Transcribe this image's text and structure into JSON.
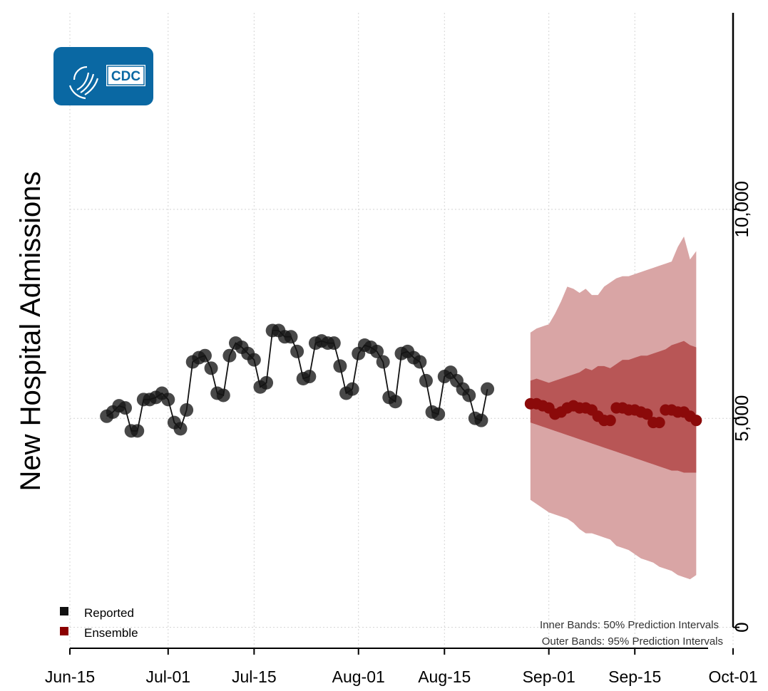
{
  "logo": {
    "text": "CDC",
    "icon": "hhs-eagle-icon",
    "color": "#0a68a3"
  },
  "chart_data": {
    "type": "line",
    "title": "",
    "ylabel": "New Hospital Admissions",
    "xlabel": "",
    "x_axis": {
      "type": "date",
      "range": [
        "2021-06-15",
        "2021-10-01"
      ],
      "ticks": [
        {
          "date": "2021-06-15",
          "label": "Jun-15"
        },
        {
          "date": "2021-07-01",
          "label": "Jul-01"
        },
        {
          "date": "2021-07-15",
          "label": "Jul-15"
        },
        {
          "date": "2021-08-01",
          "label": "Aug-01"
        },
        {
          "date": "2021-08-15",
          "label": "Aug-15"
        },
        {
          "date": "2021-09-01",
          "label": "Sep-01"
        },
        {
          "date": "2021-09-15",
          "label": "Sep-15"
        },
        {
          "date": "2021-10-01",
          "label": "Oct-01"
        }
      ]
    },
    "y_axis": {
      "position": "right",
      "range": [
        -500,
        14700
      ],
      "ticks": [
        {
          "value": 0,
          "label": "0"
        },
        {
          "value": 5000,
          "label": "5,000"
        },
        {
          "value": 10000,
          "label": "10,000"
        }
      ]
    },
    "grid": true,
    "legend": {
      "position": "bottom-left",
      "entries": [
        {
          "label": "Reported",
          "color": "#111111"
        },
        {
          "label": "Ensemble",
          "color": "#8b0000"
        }
      ]
    },
    "annotations": [
      "Inner Bands: 50% Prediction Intervals",
      "Outer Bands: 95% Prediction Intervals"
    ],
    "series": [
      {
        "name": "Reported",
        "color": "#111111",
        "dates": [
          "2021-06-21",
          "2021-06-22",
          "2021-06-23",
          "2021-06-24",
          "2021-06-25",
          "2021-06-26",
          "2021-06-27",
          "2021-06-28",
          "2021-06-29",
          "2021-06-30",
          "2021-07-01",
          "2021-07-02",
          "2021-07-03",
          "2021-07-04",
          "2021-07-05",
          "2021-07-06",
          "2021-07-07",
          "2021-07-08",
          "2021-07-09",
          "2021-07-10",
          "2021-07-11",
          "2021-07-12",
          "2021-07-13",
          "2021-07-14",
          "2021-07-15",
          "2021-07-16",
          "2021-07-17",
          "2021-07-18",
          "2021-07-19",
          "2021-07-20",
          "2021-07-21",
          "2021-07-22",
          "2021-07-23",
          "2021-07-24",
          "2021-07-25",
          "2021-07-26",
          "2021-07-27",
          "2021-07-28",
          "2021-07-29",
          "2021-07-30",
          "2021-07-31",
          "2021-08-01",
          "2021-08-02",
          "2021-08-03",
          "2021-08-04",
          "2021-08-05",
          "2021-08-06",
          "2021-08-07",
          "2021-08-08",
          "2021-08-09",
          "2021-08-10",
          "2021-08-11",
          "2021-08-12",
          "2021-08-13",
          "2021-08-14",
          "2021-08-15",
          "2021-08-16",
          "2021-08-17",
          "2021-08-18",
          "2021-08-19",
          "2021-08-20",
          "2021-08-21",
          "2021-08-22"
        ],
        "values": [
          5050,
          5150,
          5300,
          5250,
          4700,
          4700,
          5450,
          5450,
          5500,
          5600,
          5450,
          4900,
          4750,
          5200,
          6350,
          6450,
          6500,
          6200,
          5600,
          5550,
          6500,
          6800,
          6700,
          6550,
          6400,
          5750,
          5850,
          7100,
          7100,
          6950,
          6950,
          6600,
          5950,
          6000,
          6800,
          6850,
          6800,
          6800,
          6250,
          5600,
          5700,
          6550,
          6750,
          6700,
          6600,
          6350,
          5500,
          5400,
          6550,
          6600,
          6450,
          6350,
          5900,
          5150,
          5100,
          6000,
          6100,
          5900,
          5700,
          5550,
          5000,
          4950,
          5700
        ]
      },
      {
        "name": "Ensemble",
        "color": "#8b0000",
        "dates": [
          "2021-08-29",
          "2021-08-30",
          "2021-08-31",
          "2021-09-01",
          "2021-09-02",
          "2021-09-03",
          "2021-09-04",
          "2021-09-05",
          "2021-09-06",
          "2021-09-07",
          "2021-09-08",
          "2021-09-09",
          "2021-09-10",
          "2021-09-11",
          "2021-09-12",
          "2021-09-13",
          "2021-09-14",
          "2021-09-15",
          "2021-09-16",
          "2021-09-17",
          "2021-09-18",
          "2021-09-19",
          "2021-09-20",
          "2021-09-21",
          "2021-09-22",
          "2021-09-23",
          "2021-09-24",
          "2021-09-25"
        ],
        "values": [
          5350,
          5350,
          5300,
          5250,
          5100,
          5150,
          5250,
          5300,
          5250,
          5250,
          5200,
          5050,
          4950,
          4950,
          5250,
          5250,
          5200,
          5200,
          5150,
          5100,
          4900,
          4900,
          5200,
          5200,
          5150,
          5150,
          5050,
          4950
        ],
        "inner_band": {
          "lower": [
            4900,
            4850,
            4800,
            4750,
            4700,
            4650,
            4600,
            4550,
            4500,
            4450,
            4400,
            4350,
            4300,
            4250,
            4200,
            4150,
            4100,
            4050,
            4000,
            3950,
            3900,
            3850,
            3800,
            3750,
            3750,
            3700,
            3700,
            3700
          ],
          "upper": [
            5900,
            5950,
            5900,
            5850,
            5900,
            5950,
            6000,
            6050,
            6100,
            6200,
            6150,
            6250,
            6250,
            6200,
            6300,
            6400,
            6400,
            6450,
            6500,
            6500,
            6550,
            6600,
            6650,
            6750,
            6800,
            6850,
            6750,
            6700
          ]
        },
        "outer_band": {
          "lower": [
            3050,
            2950,
            2850,
            2750,
            2700,
            2650,
            2600,
            2500,
            2350,
            2250,
            2250,
            2200,
            2150,
            2100,
            1950,
            1900,
            1850,
            1750,
            1650,
            1600,
            1550,
            1450,
            1400,
            1350,
            1250,
            1200,
            1150,
            1250
          ],
          "upper": [
            7050,
            7150,
            7200,
            7250,
            7500,
            7800,
            8150,
            8100,
            8000,
            8100,
            7950,
            7950,
            8150,
            8250,
            8350,
            8400,
            8400,
            8450,
            8500,
            8550,
            8600,
            8650,
            8700,
            8750,
            9100,
            9350,
            8800,
            9000
          ]
        }
      }
    ]
  }
}
